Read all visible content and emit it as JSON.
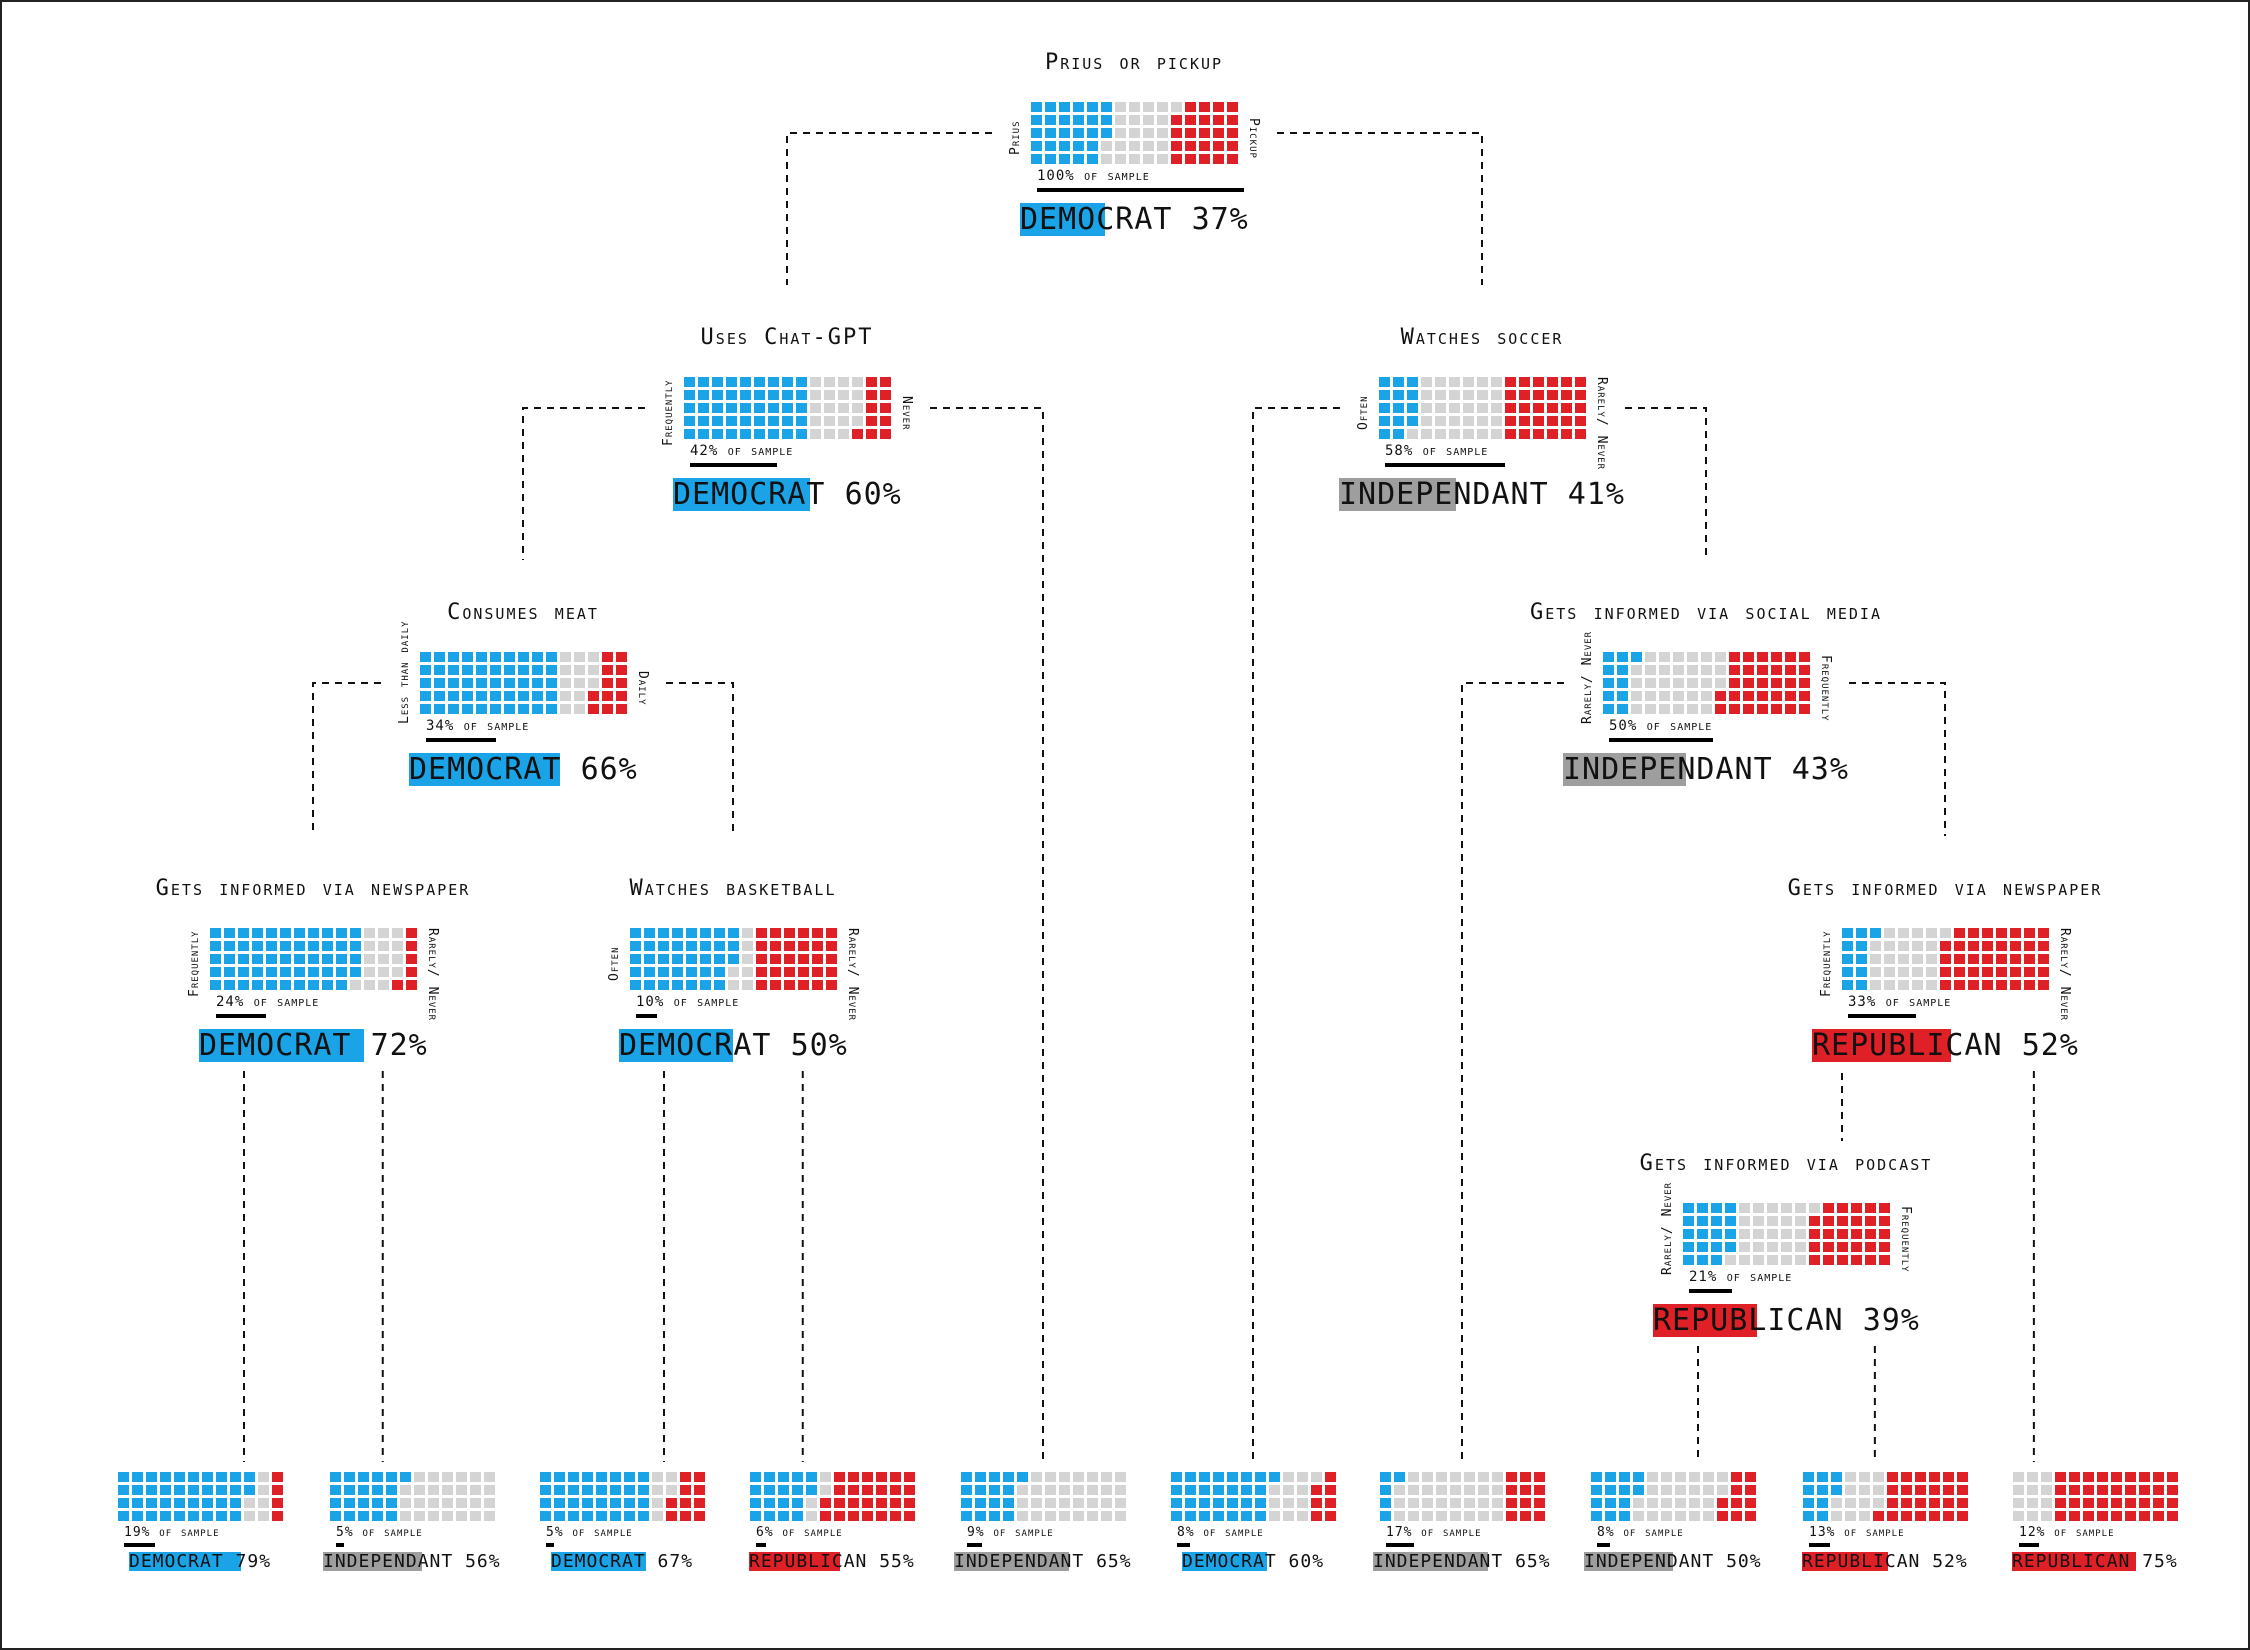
{
  "colors": {
    "democrat": "#1aa3e6",
    "independant": "#9e9e9e",
    "republican": "#e02027",
    "neutral": "#d4d4d4",
    "bar": "#000000"
  },
  "tree": {
    "root": {
      "title": "Prius or pickup",
      "left_label": "Prius",
      "right_label": "Pickup",
      "sample_pct": 100,
      "sample_text": "100% of sample",
      "party_key": "democrat",
      "party": "DEMOCRAT",
      "pct": 37,
      "pct_text": "37%",
      "mix": {
        "democrat": 37,
        "neutral": 31,
        "republican": 32
      }
    },
    "chat_gpt": {
      "title": "Uses Chat-GPT",
      "left_label": "Frequently",
      "right_label": "Never",
      "sample_pct": 42,
      "sample_text": "42% of sample",
      "party_key": "democrat",
      "party": "DEMOCRAT",
      "pct": 60,
      "pct_text": "60%",
      "mix": {
        "democrat": 60,
        "neutral": 26,
        "republican": 14
      }
    },
    "soccer": {
      "title": "Watches soccer",
      "left_label": "Often",
      "right_label": "Rarely/ Never",
      "sample_pct": 58,
      "sample_text": "58% of sample",
      "party_key": "independant",
      "party": "INDEPENDANT",
      "pct": 41,
      "pct_text": "41%",
      "mix": {
        "democrat": 19,
        "neutral": 41,
        "republican": 40
      }
    },
    "meat": {
      "title": "Consumes meat",
      "left_label": "Less than daily",
      "right_label": "Daily",
      "sample_pct": 34,
      "sample_text": "34% of sample",
      "party_key": "democrat",
      "party": "DEMOCRAT",
      "pct": 66,
      "pct_text": "66%",
      "mix": {
        "democrat": 66,
        "neutral": 18,
        "republican": 16
      }
    },
    "social_media": {
      "title": "Gets informed via social media",
      "left_label": "Rarely/ Never",
      "right_label": "Frequently",
      "sample_pct": 50,
      "sample_text": "50% of sample",
      "party_key": "independant",
      "party": "INDEPENDANT",
      "pct": 43,
      "pct_text": "43%",
      "mix": {
        "democrat": 14,
        "neutral": 43,
        "republican": 43
      }
    },
    "newspaper_left": {
      "title": "Gets informed via newspaper",
      "left_label": "Frequently",
      "right_label": "Rarely/ Never",
      "sample_pct": 24,
      "sample_text": "24% of sample",
      "party_key": "democrat",
      "party": "DEMOCRAT",
      "pct": 72,
      "pct_text": "72%",
      "mix": {
        "democrat": 72,
        "neutral": 20,
        "republican": 8
      }
    },
    "basketball": {
      "title": "Watches basketball",
      "left_label": "Often",
      "right_label": "Rarely/ Never",
      "sample_pct": 10,
      "sample_text": "10% of sample",
      "party_key": "democrat",
      "party": "DEMOCRAT",
      "pct": 50,
      "pct_text": "50%",
      "mix": {
        "democrat": 50,
        "neutral": 10,
        "republican": 40
      }
    },
    "newspaper_right": {
      "title": "Gets informed via newspaper",
      "left_label": "Frequently",
      "right_label": "Rarely/ Never",
      "sample_pct": 33,
      "sample_text": "33% of sample",
      "party_key": "republican",
      "party": "REPUBLICAN",
      "pct": 52,
      "pct_text": "52%",
      "mix": {
        "democrat": 14,
        "neutral": 34,
        "republican": 52
      }
    },
    "podcast": {
      "title": "Gets informed via podcast",
      "left_label": "Rarely/ Never",
      "right_label": "Frequently",
      "sample_pct": 21,
      "sample_text": "21% of sample",
      "party_key": "republican",
      "party": "REPUBLICAN",
      "pct": 39,
      "pct_text": "39%",
      "mix": {
        "democrat": 25,
        "neutral": 36,
        "republican": 39
      }
    }
  },
  "leaves": [
    {
      "sample_pct": 19,
      "sample_text": "19% of sample",
      "party_key": "democrat",
      "party": "DEMOCRAT",
      "pct": 79,
      "pct_text": "79%",
      "mix": {
        "democrat": 79,
        "neutral": 12,
        "republican": 9
      }
    },
    {
      "sample_pct": 5,
      "sample_text": "5% of sample",
      "party_key": "independant",
      "party": "INDEPENDANT",
      "pct": 56,
      "pct_text": "56%",
      "mix": {
        "democrat": 44,
        "neutral": 56,
        "republican": 0
      }
    },
    {
      "sample_pct": 5,
      "sample_text": "5% of sample",
      "party_key": "democrat",
      "party": "DEMOCRAT",
      "pct": 67,
      "pct_text": "67%",
      "mix": {
        "democrat": 67,
        "neutral": 13,
        "republican": 20
      }
    },
    {
      "sample_pct": 6,
      "sample_text": "6% of sample",
      "party_key": "republican",
      "party": "REPUBLICAN",
      "pct": 55,
      "pct_text": "55%",
      "mix": {
        "democrat": 38,
        "neutral": 7,
        "republican": 55
      }
    },
    {
      "sample_pct": 9,
      "sample_text": "9% of sample",
      "party_key": "independant",
      "party": "INDEPENDANT",
      "pct": 65,
      "pct_text": "65%",
      "mix": {
        "democrat": 35,
        "neutral": 65,
        "republican": 0
      }
    },
    {
      "sample_pct": 8,
      "sample_text": "8% of sample",
      "party_key": "democrat",
      "party": "DEMOCRAT",
      "pct": 60,
      "pct_text": "60%",
      "mix": {
        "democrat": 60,
        "neutral": 25,
        "republican": 15
      }
    },
    {
      "sample_pct": 17,
      "sample_text": "17% of sample",
      "party_key": "independant",
      "party": "INDEPENDANT",
      "pct": 65,
      "pct_text": "65%",
      "mix": {
        "democrat": 10,
        "neutral": 65,
        "republican": 25
      }
    },
    {
      "sample_pct": 8,
      "sample_text": "8% of sample",
      "party_key": "independant",
      "party": "INDEPENDANT",
      "pct": 50,
      "pct_text": "50%",
      "mix": {
        "democrat": 30,
        "neutral": 50,
        "republican": 20
      }
    },
    {
      "sample_pct": 13,
      "sample_text": "13% of sample",
      "party_key": "republican",
      "party": "REPUBLICAN",
      "pct": 52,
      "pct_text": "52%",
      "mix": {
        "democrat": 20,
        "neutral": 28,
        "republican": 52
      }
    },
    {
      "sample_pct": 12,
      "sample_text": "12% of sample",
      "party_key": "republican",
      "party": "REPUBLICAN",
      "pct": 75,
      "pct_text": "75%",
      "mix": {
        "democrat": 0,
        "neutral": 25,
        "republican": 75
      }
    }
  ]
}
